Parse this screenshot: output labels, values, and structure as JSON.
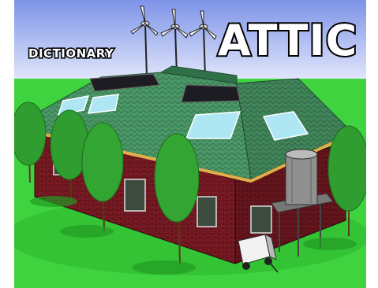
{
  "title": {
    "prefix": "DICTIONARY",
    "main": "ATTIC"
  },
  "colors": {
    "sky_top": "#7d93e8",
    "sky_bottom": "#ffffff",
    "grass": "#3bd13b",
    "grass_dark": "#22a722",
    "roof": "#3f8a5c",
    "roof_dark": "#2d6b45",
    "brick": "#7a1a22",
    "brick_dark": "#4c0d13",
    "trim": "#d9a441",
    "glass": "#a9e4f2",
    "solar": "#1e1e24",
    "tank": "#8a8a8a",
    "tree": "#2e9a2e"
  },
  "icons": [
    "wind-turbine-icon",
    "solar-panel-icon",
    "skylight-icon",
    "water-tank-icon",
    "generator-icon",
    "tree-icon"
  ]
}
